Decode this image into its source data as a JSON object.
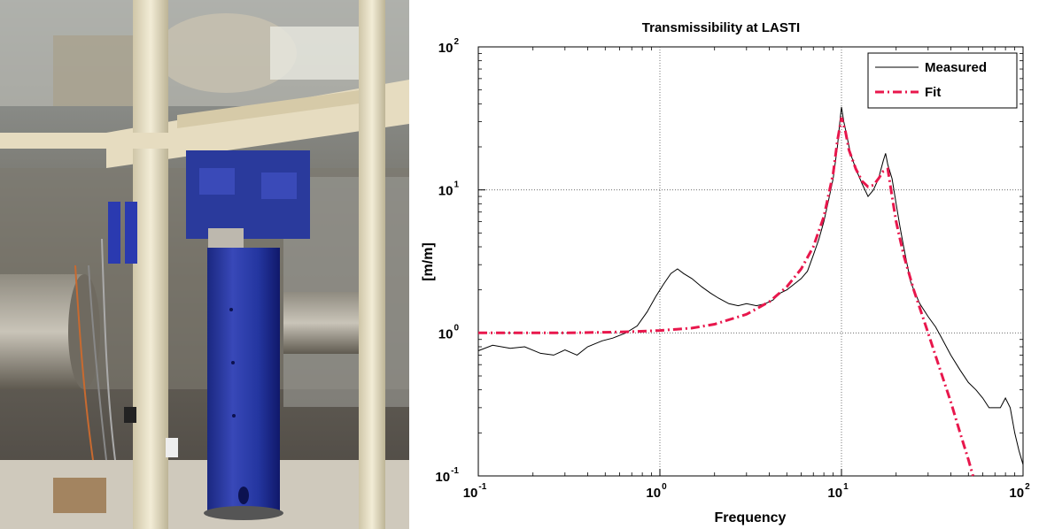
{
  "chart_data": {
    "type": "line",
    "title": "Transmissibility at LASTI",
    "xlabel": "Frequency",
    "ylabel": "[m/m]",
    "xscale": "log",
    "yscale": "log",
    "xlim": [
      0.1,
      100
    ],
    "ylim": [
      0.1,
      100
    ],
    "grid": true,
    "legend_position": "top-right",
    "xticks": [
      {
        "base": "10",
        "exp": "-1"
      },
      {
        "base": "10",
        "exp": "0"
      },
      {
        "base": "10",
        "exp": "1"
      },
      {
        "base": "10",
        "exp": "2"
      }
    ],
    "yticks": [
      {
        "base": "10",
        "exp": "-1"
      },
      {
        "base": "10",
        "exp": "0"
      },
      {
        "base": "10",
        "exp": "1"
      },
      {
        "base": "10",
        "exp": "2"
      }
    ],
    "series": [
      {
        "name": "Measured",
        "color": "#000000",
        "style": "solid",
        "points": [
          [
            0.1,
            0.75
          ],
          [
            0.12,
            0.82
          ],
          [
            0.15,
            0.78
          ],
          [
            0.18,
            0.8
          ],
          [
            0.22,
            0.72
          ],
          [
            0.26,
            0.7
          ],
          [
            0.3,
            0.76
          ],
          [
            0.35,
            0.7
          ],
          [
            0.4,
            0.8
          ],
          [
            0.48,
            0.88
          ],
          [
            0.55,
            0.92
          ],
          [
            0.65,
            1.0
          ],
          [
            0.75,
            1.12
          ],
          [
            0.85,
            1.4
          ],
          [
            0.95,
            1.8
          ],
          [
            1.05,
            2.2
          ],
          [
            1.15,
            2.6
          ],
          [
            1.25,
            2.8
          ],
          [
            1.35,
            2.6
          ],
          [
            1.5,
            2.4
          ],
          [
            1.7,
            2.1
          ],
          [
            1.9,
            1.9
          ],
          [
            2.1,
            1.75
          ],
          [
            2.4,
            1.6
          ],
          [
            2.7,
            1.55
          ],
          [
            3.0,
            1.6
          ],
          [
            3.4,
            1.55
          ],
          [
            3.8,
            1.6
          ],
          [
            4.2,
            1.7
          ],
          [
            4.6,
            1.9
          ],
          [
            5.0,
            2.0
          ],
          [
            5.5,
            2.2
          ],
          [
            6.0,
            2.4
          ],
          [
            6.5,
            2.7
          ],
          [
            7.0,
            3.5
          ],
          [
            7.5,
            4.5
          ],
          [
            8.0,
            6.0
          ],
          [
            8.5,
            8.5
          ],
          [
            9.0,
            12
          ],
          [
            9.5,
            20
          ],
          [
            9.8,
            30
          ],
          [
            10.0,
            38
          ],
          [
            10.3,
            30
          ],
          [
            10.7,
            24
          ],
          [
            11.2,
            18
          ],
          [
            12.0,
            14
          ],
          [
            13.0,
            11
          ],
          [
            14.0,
            9
          ],
          [
            15.0,
            10
          ],
          [
            16.0,
            12
          ],
          [
            17.0,
            16
          ],
          [
            17.5,
            18
          ],
          [
            18.0,
            15
          ],
          [
            19.0,
            12
          ],
          [
            20.0,
            8
          ],
          [
            21.0,
            5.5
          ],
          [
            22.0,
            4
          ],
          [
            23.0,
            3
          ],
          [
            24.0,
            2.3
          ],
          [
            25.0,
            2.0
          ],
          [
            27.0,
            1.6
          ],
          [
            30.0,
            1.3
          ],
          [
            33.0,
            1.1
          ],
          [
            36.0,
            0.9
          ],
          [
            40.0,
            0.7
          ],
          [
            45.0,
            0.55
          ],
          [
            50.0,
            0.45
          ],
          [
            55.0,
            0.4
          ],
          [
            60.0,
            0.35
          ],
          [
            65.0,
            0.3
          ],
          [
            70.0,
            0.3
          ],
          [
            75.0,
            0.3
          ],
          [
            80.0,
            0.35
          ],
          [
            85.0,
            0.3
          ],
          [
            90.0,
            0.2
          ],
          [
            95.0,
            0.15
          ],
          [
            100.0,
            0.12
          ]
        ]
      },
      {
        "name": "Fit",
        "color": "#e8174c",
        "style": "dashdot",
        "points": [
          [
            0.1,
            1.0
          ],
          [
            0.2,
            1.0
          ],
          [
            0.3,
            1.0
          ],
          [
            0.5,
            1.01
          ],
          [
            0.7,
            1.02
          ],
          [
            1.0,
            1.04
          ],
          [
            1.5,
            1.08
          ],
          [
            2.0,
            1.15
          ],
          [
            3.0,
            1.35
          ],
          [
            4.0,
            1.65
          ],
          [
            5.0,
            2.1
          ],
          [
            6.0,
            2.8
          ],
          [
            7.0,
            4.0
          ],
          [
            8.0,
            6.5
          ],
          [
            9.0,
            13
          ],
          [
            9.5,
            22
          ],
          [
            10.0,
            32
          ],
          [
            10.5,
            26
          ],
          [
            11.0,
            19
          ],
          [
            12.0,
            14
          ],
          [
            13.0,
            11.5
          ],
          [
            14.0,
            10.5
          ],
          [
            15.0,
            10.8
          ],
          [
            16.0,
            12
          ],
          [
            17.0,
            13.5
          ],
          [
            18.0,
            14
          ],
          [
            19.0,
            9
          ],
          [
            20.0,
            6
          ],
          [
            22.0,
            3.5
          ],
          [
            25.0,
            2.0
          ],
          [
            30.0,
            1.0
          ],
          [
            35.0,
            0.55
          ],
          [
            40.0,
            0.33
          ],
          [
            45.0,
            0.2
          ],
          [
            50.0,
            0.13
          ],
          [
            53.0,
            0.1
          ]
        ]
      }
    ]
  }
}
